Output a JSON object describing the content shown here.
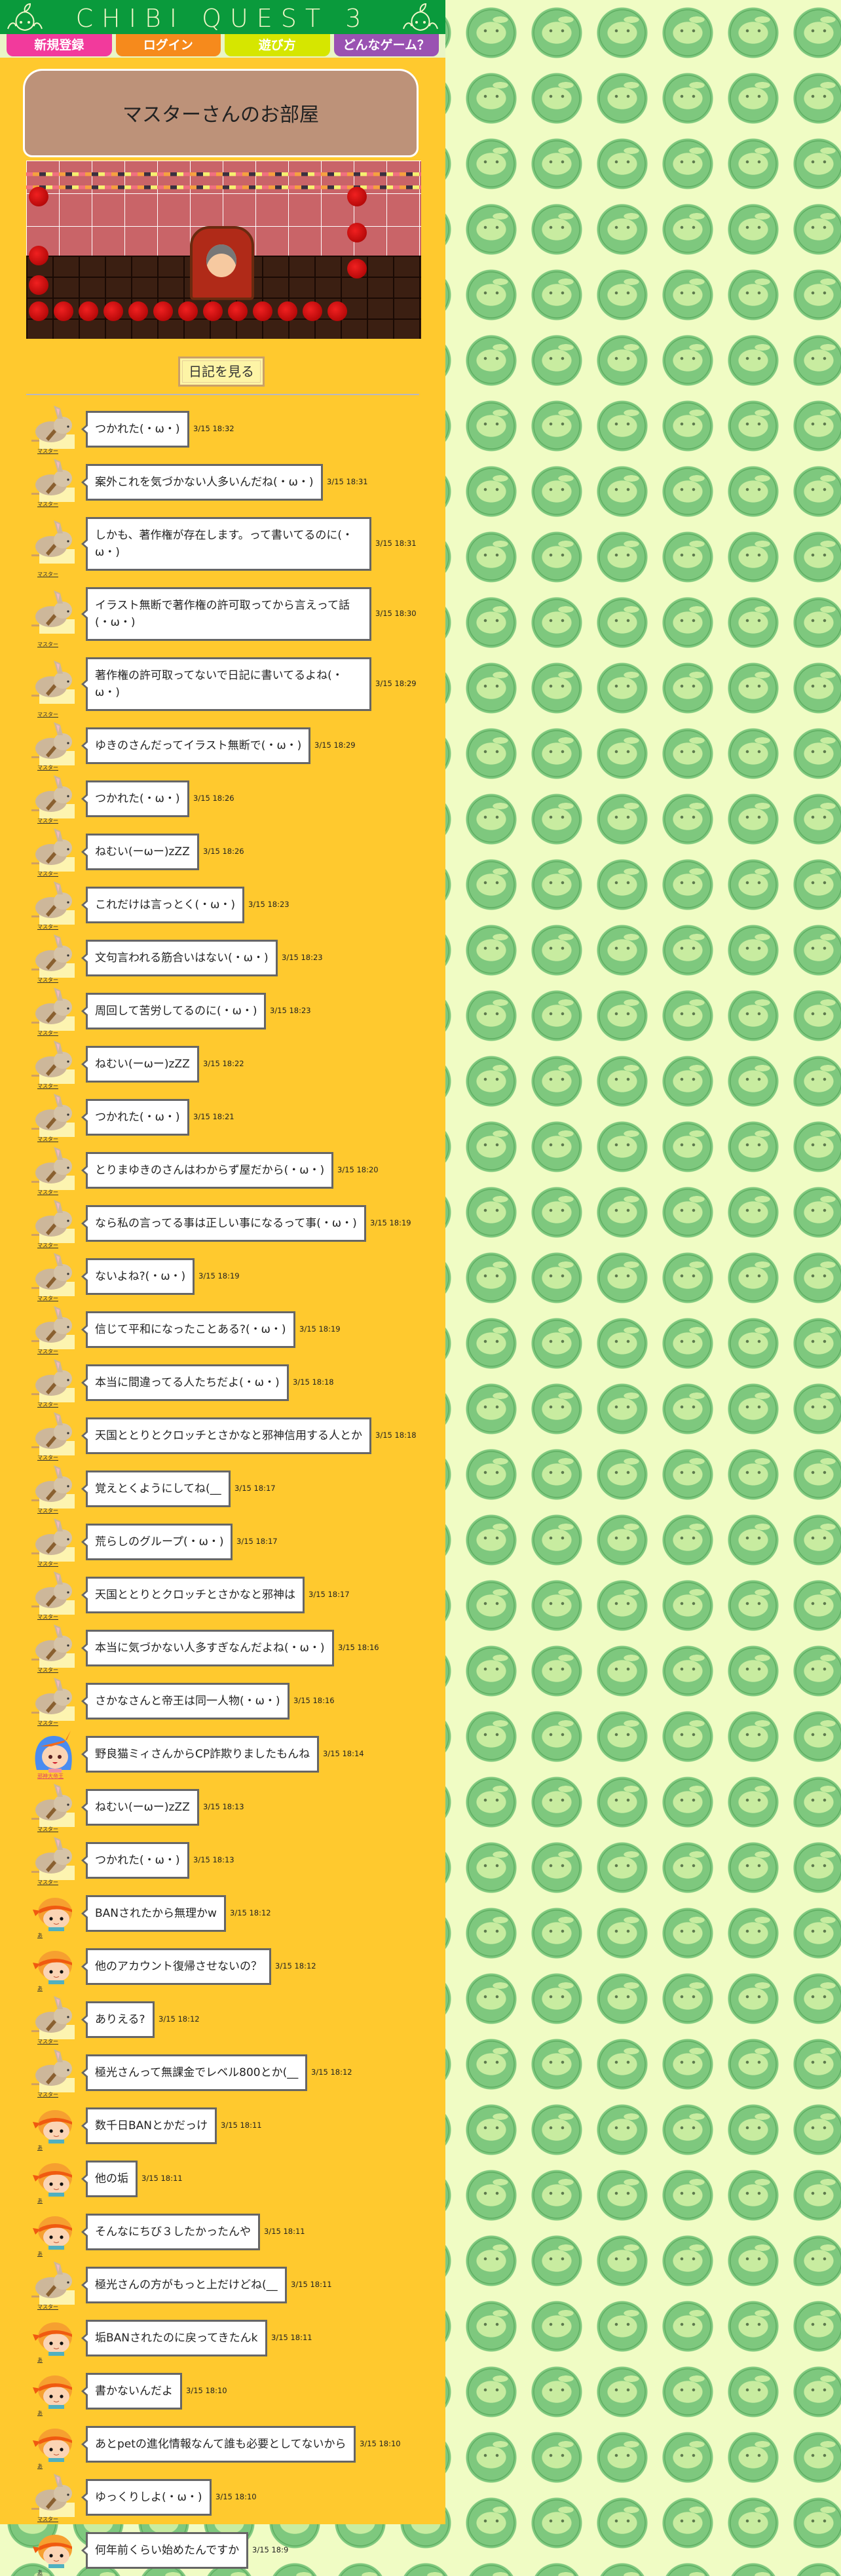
{
  "header": {
    "title": "CHIBI QUEST 3"
  },
  "nav": [
    {
      "label": "新規登録",
      "color": "#f23a9c"
    },
    {
      "label": "ログイン",
      "color": "#f68a1c"
    },
    {
      "label": "遊び方",
      "color": "#d6e600"
    },
    {
      "label": "どんなゲーム？",
      "color": "#9a52b2"
    }
  ],
  "room": {
    "title": "マスターさんのお部屋",
    "diary_button": "日記を見る"
  },
  "colors": {
    "panel": "#ffc92e",
    "header": "#0a9a3c",
    "title_box": "#bd9279"
  },
  "messages": [
    {
      "user": "マスター",
      "avatar": "rabbit",
      "text": "つかれた(・ω・)",
      "time": "3/15 18:32"
    },
    {
      "user": "マスター",
      "avatar": "rabbit",
      "text": "案外これを気づかない人多いんだね(・ω・)",
      "time": "3/15 18:31"
    },
    {
      "user": "マスター",
      "avatar": "rabbit",
      "text": "しかも、著作権が存在します。って書いてるのに(・ω・)",
      "time": "3/15 18:31"
    },
    {
      "user": "マスター",
      "avatar": "rabbit",
      "text": "イラスト無断で著作権の許可取ってから言えって話(・ω・)",
      "time": "3/15 18:30"
    },
    {
      "user": "マスター",
      "avatar": "rabbit",
      "text": "著作権の許可取ってないで日記に書いてるよね(・ω・)",
      "time": "3/15 18:29"
    },
    {
      "user": "マスター",
      "avatar": "rabbit",
      "text": "ゆきのさんだってイラスト無断で(・ω・)",
      "time": "3/15 18:29"
    },
    {
      "user": "マスター",
      "avatar": "rabbit",
      "text": "つかれた(・ω・)",
      "time": "3/15 18:26"
    },
    {
      "user": "マスター",
      "avatar": "rabbit",
      "text": "ねむい(ーωー)zZZ",
      "time": "3/15 18:26"
    },
    {
      "user": "マスター",
      "avatar": "rabbit",
      "text": "これだけは言っとく(・ω・)",
      "time": "3/15 18:23"
    },
    {
      "user": "マスター",
      "avatar": "rabbit",
      "text": "文句言われる筋合いはない(・ω・)",
      "time": "3/15 18:23"
    },
    {
      "user": "マスター",
      "avatar": "rabbit",
      "text": "周回して苦労してるのに(・ω・)",
      "time": "3/15 18:23"
    },
    {
      "user": "マスター",
      "avatar": "rabbit",
      "text": "ねむい(ーωー)zZZ",
      "time": "3/15 18:22"
    },
    {
      "user": "マスター",
      "avatar": "rabbit",
      "text": "つかれた(・ω・)",
      "time": "3/15 18:21"
    },
    {
      "user": "マスター",
      "avatar": "rabbit",
      "text": "とりまゆきのさんはわからず屋だから(・ω・)",
      "time": "3/15 18:20"
    },
    {
      "user": "マスター",
      "avatar": "rabbit",
      "text": "なら私の言ってる事は正しい事になるって事(・ω・)",
      "time": "3/15 18:19"
    },
    {
      "user": "マスター",
      "avatar": "rabbit",
      "text": "ないよね?(・ω・)",
      "time": "3/15 18:19"
    },
    {
      "user": "マスター",
      "avatar": "rabbit",
      "text": "信じて平和になったことある?(・ω・)",
      "time": "3/15 18:19"
    },
    {
      "user": "マスター",
      "avatar": "rabbit",
      "text": "本当に間違ってる人たちだよ(・ω・)",
      "time": "3/15 18:18"
    },
    {
      "user": "マスター",
      "avatar": "rabbit",
      "text": "天国ととりとクロッチとさかなと邪神信用する人とか",
      "time": "3/15 18:18"
    },
    {
      "user": "マスター",
      "avatar": "rabbit",
      "text": "覚えとくようにしてね(__",
      "time": "3/15 18:17"
    },
    {
      "user": "マスター",
      "avatar": "rabbit",
      "text": "荒らしのグループ(・ω・)",
      "time": "3/15 18:17"
    },
    {
      "user": "マスター",
      "avatar": "rabbit",
      "text": "天国ととりとクロッチとさかなと邪神は",
      "time": "3/15 18:17"
    },
    {
      "user": "マスター",
      "avatar": "rabbit",
      "text": "本当に気づかない人多すぎなんだよね(・ω・)",
      "time": "3/15 18:16"
    },
    {
      "user": "マスター",
      "avatar": "rabbit",
      "text": "さかなさんと帝王は同一人物(・ω・)",
      "time": "3/15 18:16"
    },
    {
      "user": "邪神大帝王",
      "avatar": "blue-hair-girl",
      "text": "野良猫ミィさんからCP詐欺りましたもんね",
      "time": "3/15 18:14"
    },
    {
      "user": "マスター",
      "avatar": "rabbit",
      "text": "ねむい(ーωー)zZZ",
      "time": "3/15 18:13"
    },
    {
      "user": "マスター",
      "avatar": "rabbit",
      "text": "つかれた(・ω・)",
      "time": "3/15 18:13"
    },
    {
      "user": "あ",
      "avatar": "orange-hair-boy",
      "text": "BANされたから無理かw",
      "time": "3/15 18:12"
    },
    {
      "user": "あ",
      "avatar": "orange-hair-boy",
      "text": "他のアカウント復帰させないの？",
      "time": "3/15 18:12"
    },
    {
      "user": "マスター",
      "avatar": "rabbit",
      "text": "ありえる?",
      "time": "3/15 18:12"
    },
    {
      "user": "マスター",
      "avatar": "rabbit",
      "text": "極光さんって無課金でレベル800とか(__",
      "time": "3/15 18:12"
    },
    {
      "user": "あ",
      "avatar": "orange-hair-boy",
      "text": "数千日BANとかだっけ",
      "time": "3/15 18:11"
    },
    {
      "user": "あ",
      "avatar": "orange-hair-boy",
      "text": "他の垢",
      "time": "3/15 18:11"
    },
    {
      "user": "あ",
      "avatar": "orange-hair-boy",
      "text": "そんなにちび３したかったんや",
      "time": "3/15 18:11"
    },
    {
      "user": "マスター",
      "avatar": "rabbit",
      "text": "極光さんの方がもっと上だけどね(__",
      "time": "3/15 18:11"
    },
    {
      "user": "あ",
      "avatar": "orange-hair-boy",
      "text": "垢BANされたのに戻ってきたんk",
      "time": "3/15 18:11"
    },
    {
      "user": "あ",
      "avatar": "orange-hair-boy",
      "text": "書かないんだよ",
      "time": "3/15 18:10"
    },
    {
      "user": "あ",
      "avatar": "orange-hair-boy",
      "text": "あとpetの進化情報なんて誰も必要としてないから",
      "time": "3/15 18:10"
    },
    {
      "user": "マスター",
      "avatar": "rabbit",
      "text": "ゆっくりしよ(・ω・)",
      "time": "3/15 18:10"
    },
    {
      "user": "あ",
      "avatar": "orange-hair-boy",
      "text": "何年前くらい始めたんですか",
      "time": "3/15 18:9"
    }
  ]
}
